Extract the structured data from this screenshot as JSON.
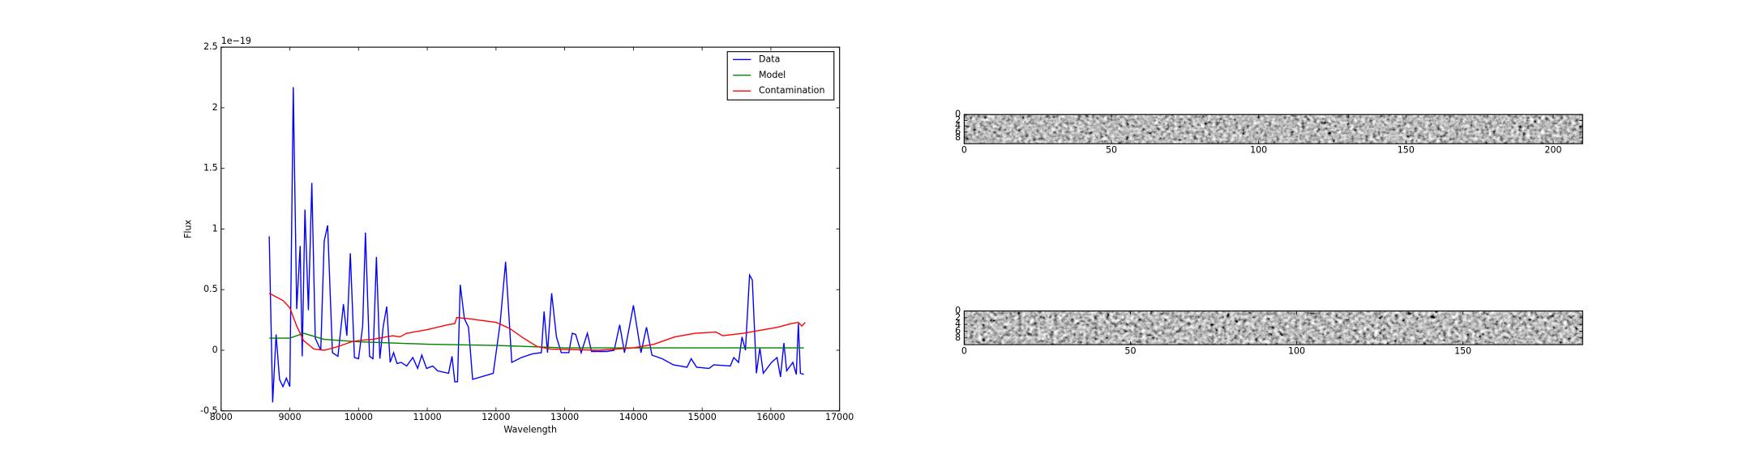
{
  "chart_data": [
    {
      "type": "line",
      "xlabel": "Wavelength",
      "ylabel": "Flux",
      "offset_label": "1e−19",
      "xlim": [
        8000,
        17000
      ],
      "xticks": [
        8000,
        9000,
        10000,
        11000,
        12000,
        13000,
        14000,
        15000,
        16000,
        17000
      ],
      "ylim": [
        -0.5,
        2.5
      ],
      "yticks": [
        -0.5,
        0.0,
        0.5,
        1.0,
        1.5,
        2.0,
        2.5
      ],
      "legend": "upper right",
      "series": [
        {
          "name": "Data",
          "color": "#0000ff",
          "x": [
            8700,
            8750,
            8800,
            8850,
            8900,
            8950,
            9000,
            9050,
            9100,
            9150,
            9180,
            9220,
            9270,
            9320,
            9370,
            9450,
            9500,
            9550,
            9620,
            9700,
            9780,
            9830,
            9880,
            9940,
            10000,
            10060,
            10100,
            10160,
            10210,
            10260,
            10310,
            10360,
            10410,
            10460,
            10510,
            10560,
            10620,
            10700,
            10790,
            10860,
            10920,
            10990,
            11080,
            11150,
            11310,
            11360,
            11400,
            11440,
            11480,
            11540,
            11600,
            11660,
            11960,
            12060,
            12140,
            12230,
            12370,
            12530,
            12660,
            12700,
            12750,
            12810,
            12880,
            12950,
            13060,
            13110,
            13160,
            13240,
            13330,
            13390,
            13610,
            13720,
            13800,
            13870,
            14000,
            14110,
            14190,
            14270,
            14420,
            14580,
            14780,
            14840,
            14920,
            15100,
            15170,
            15410,
            15460,
            15530,
            15580,
            15630,
            15690,
            15730,
            15790,
            15840,
            15890,
            16010,
            16090,
            16140,
            16190,
            16230,
            16320,
            16370,
            16400,
            16430,
            16480
          ],
          "values": [
            0.94,
            -0.43,
            0.13,
            -0.24,
            -0.3,
            -0.23,
            -0.3,
            2.17,
            0.34,
            0.86,
            -0.05,
            1.16,
            0.33,
            1.38,
            0.1,
            0.0,
            0.9,
            1.03,
            -0.02,
            -0.05,
            0.38,
            0.12,
            0.8,
            -0.06,
            -0.07,
            0.2,
            0.97,
            -0.05,
            -0.07,
            0.77,
            -0.07,
            0.2,
            0.36,
            -0.1,
            -0.02,
            -0.11,
            -0.1,
            -0.13,
            -0.06,
            -0.15,
            -0.04,
            -0.15,
            -0.13,
            -0.17,
            -0.19,
            -0.05,
            -0.26,
            -0.26,
            0.54,
            0.26,
            0.19,
            -0.24,
            -0.19,
            0.22,
            0.73,
            -0.1,
            -0.06,
            -0.03,
            -0.02,
            0.32,
            -0.02,
            0.47,
            0.11,
            -0.02,
            -0.02,
            0.14,
            0.13,
            -0.02,
            0.14,
            -0.01,
            -0.01,
            0.0,
            0.21,
            -0.02,
            0.37,
            -0.02,
            0.19,
            -0.04,
            -0.07,
            -0.12,
            -0.14,
            -0.07,
            -0.14,
            -0.15,
            -0.12,
            -0.13,
            -0.06,
            -0.1,
            0.11,
            0.0,
            0.62,
            0.58,
            -0.19,
            0.02,
            -0.19,
            -0.1,
            -0.06,
            -0.22,
            0.06,
            -0.17,
            -0.1,
            -0.2,
            0.22,
            -0.19,
            -0.2
          ]
        },
        {
          "name": "Model",
          "color": "#008000",
          "x": [
            8700,
            9000,
            9200,
            9500,
            10000,
            11000,
            12000,
            13000,
            14000,
            15000,
            16000,
            16480
          ],
          "values": [
            0.1,
            0.1,
            0.14,
            0.09,
            0.07,
            0.05,
            0.04,
            0.02,
            0.02,
            0.02,
            0.02,
            0.02
          ]
        },
        {
          "name": "Contamination",
          "color": "#ff0000",
          "x": [
            8700,
            8900,
            9000,
            9100,
            9200,
            9350,
            9500,
            9700,
            9900,
            10000,
            10200,
            10500,
            10600,
            10700,
            11000,
            11300,
            11400,
            11430,
            11600,
            12000,
            12200,
            12400,
            12600,
            12800,
            13500,
            14000,
            14300,
            14600,
            14900,
            15200,
            15300,
            15600,
            15900,
            16100,
            16300,
            16400,
            16450,
            16500
          ],
          "values": [
            0.47,
            0.41,
            0.35,
            0.2,
            0.08,
            0.01,
            0.0,
            0.03,
            0.07,
            0.08,
            0.09,
            0.12,
            0.11,
            0.14,
            0.17,
            0.21,
            0.22,
            0.27,
            0.26,
            0.23,
            0.18,
            0.1,
            0.03,
            0.01,
            0.0,
            0.02,
            0.05,
            0.11,
            0.14,
            0.15,
            0.12,
            0.14,
            0.17,
            0.19,
            0.22,
            0.23,
            0.2,
            0.23
          ]
        }
      ]
    },
    {
      "type": "image",
      "xlim": [
        0,
        210
      ],
      "xticks": [
        0,
        50,
        100,
        150,
        200
      ],
      "ylim": [
        10,
        0
      ],
      "yticks": [
        0,
        2,
        4,
        6,
        8
      ]
    },
    {
      "type": "image",
      "xlim": [
        0,
        186
      ],
      "xticks": [
        0,
        50,
        100,
        150
      ],
      "ylim": [
        10,
        0
      ],
      "yticks": [
        0,
        2,
        4,
        6,
        8
      ]
    }
  ]
}
